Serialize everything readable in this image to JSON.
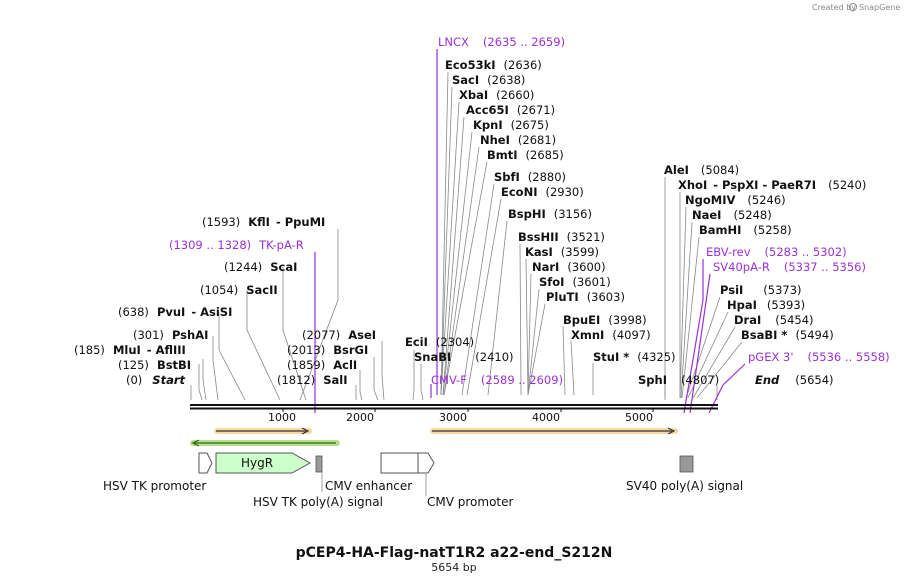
{
  "credit": {
    "prefix": "Created by",
    "brand": "SnapGene"
  },
  "plasmid": {
    "name": "pCEP4-HA-Flag-natT1R2 a22-end_S212N",
    "length_label": "5654 bp",
    "length": 5654
  },
  "axis": {
    "ticks": [
      "1000",
      "2000",
      "3000",
      "4000",
      "5000"
    ]
  },
  "colors": {
    "primer": "#9b30d9",
    "orf": "#e8a23c",
    "hygr": "#ccffcc",
    "polyA": "#999999",
    "green_arrow": "#44aa22"
  },
  "sites_left": [
    {
      "pos_label": "(1593)",
      "name": "KflI",
      "extra": "- PpuMI"
    },
    {
      "pos_label": "(1309 .. 1328)",
      "name": "TK-pA-R",
      "primer": true
    },
    {
      "pos_label": "(1244)",
      "name": "ScaI"
    },
    {
      "pos_label": "(1054)",
      "name": "SacII"
    },
    {
      "pos_label": "(638)",
      "name": "PvuI",
      "extra": "- AsiSI"
    },
    {
      "pos_label": "(301)",
      "name": "PshAI"
    },
    {
      "pos_label": "(185)",
      "name": "MluI",
      "extra": "- AflIII"
    },
    {
      "pos_label": "(125)",
      "name": "BstBI"
    },
    {
      "pos_label": "(0)",
      "name": "Start",
      "italic": true
    }
  ],
  "sites_midleft": [
    {
      "pos_label": "(2077)",
      "name": "AseI"
    },
    {
      "pos_label": "(2013)",
      "name": "BsrGI"
    },
    {
      "pos_label": "(1859)",
      "name": "AclI"
    },
    {
      "pos_label": "(1812)",
      "name": "SalI"
    }
  ],
  "sites_center": [
    {
      "name": "LNCX",
      "pos_label": "(2635 .. 2659)",
      "primer": true
    },
    {
      "name": "Eco53kI",
      "pos_label": "(2636)"
    },
    {
      "name": "SacI",
      "pos_label": "(2638)"
    },
    {
      "name": "XbaI",
      "pos_label": "(2660)"
    },
    {
      "name": "Acc65I",
      "pos_label": "(2671)"
    },
    {
      "name": "KpnI",
      "pos_label": "(2675)"
    },
    {
      "name": "NheI",
      "pos_label": "(2681)"
    },
    {
      "name": "BmtI",
      "pos_label": "(2685)"
    },
    {
      "name": "SbfI",
      "pos_label": "(2880)"
    },
    {
      "name": "EcoNI",
      "pos_label": "(2930)"
    },
    {
      "name": "BspHI",
      "pos_label": "(3156)"
    },
    {
      "name": "BssHII",
      "pos_label": "(3521)"
    },
    {
      "name": "KasI",
      "pos_label": "(3599)"
    },
    {
      "name": "NarI",
      "pos_label": "(3600)"
    },
    {
      "name": "SfoI",
      "pos_label": "(3601)"
    },
    {
      "name": "PluTI",
      "pos_label": "(3603)"
    },
    {
      "name": "BpuEI",
      "pos_label": "(3998)"
    },
    {
      "name": "XmnI",
      "pos_label": "(4097)"
    },
    {
      "name": "StuI *",
      "pos_label": "(4325)"
    },
    {
      "name": "SphI",
      "pos_label": "(4807)"
    }
  ],
  "sites_lowcenter": [
    {
      "name": "EciI",
      "pos_label": "(2304)"
    },
    {
      "name": "SnaBI",
      "pos_label": "(2410)"
    },
    {
      "name": "CMV-F",
      "pos_label": "(2589 .. 2609)",
      "primer": true
    }
  ],
  "sites_right": [
    {
      "name": "AleI",
      "pos_label": "(5084)"
    },
    {
      "name": "XhoI",
      "extra": "- PspXI  - PaeR7I",
      "pos_label": "(5240)"
    },
    {
      "name": "NgoMIV",
      "pos_label": "(5246)"
    },
    {
      "name": "NaeI",
      "pos_label": "(5248)"
    },
    {
      "name": "BamHI",
      "pos_label": "(5258)"
    },
    {
      "name": "EBV-rev",
      "pos_label": "(5283 .. 5302)",
      "primer": true
    },
    {
      "name": "SV40pA-R",
      "pos_label": "(5337 .. 5356)",
      "primer": true
    },
    {
      "name": "PsiI",
      "pos_label": "(5373)"
    },
    {
      "name": "HpaI",
      "pos_label": "(5393)"
    },
    {
      "name": "DraI",
      "pos_label": "(5454)"
    },
    {
      "name": "BsaBI *",
      "pos_label": "(5494)"
    },
    {
      "name": "pGEX 3'",
      "pos_label": "(5536 .. 5558)",
      "primer": true
    },
    {
      "name": "End",
      "pos_label": "(5654)",
      "italic": true
    }
  ],
  "features": {
    "hsv_tk_promoter": "HSV TK promoter",
    "hygr": "HygR",
    "hsv_tk_polya": "HSV TK poly(A) signal",
    "cmv_enhancer": "CMV enhancer",
    "cmv_promoter": "CMV promoter",
    "sv40_polya": "SV40 poly(A) signal"
  }
}
